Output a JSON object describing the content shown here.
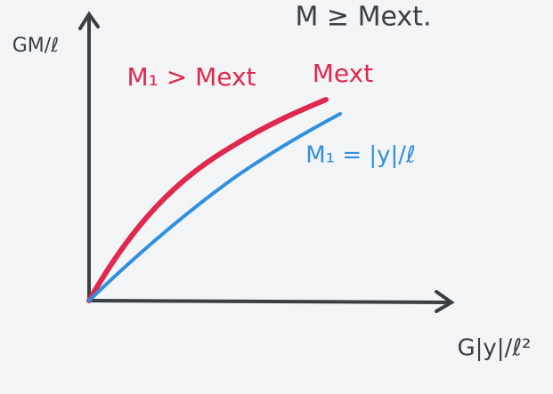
{
  "title": "M ≥ Mext.",
  "y_axis_label": "GM/ℓ",
  "x_axis_label": "G|y|/ℓ²",
  "curves": [
    {
      "label": "M₁ > Mext",
      "end_label": "Mext"
    },
    {
      "label": "M₁ = |y|/ℓ"
    }
  ]
}
